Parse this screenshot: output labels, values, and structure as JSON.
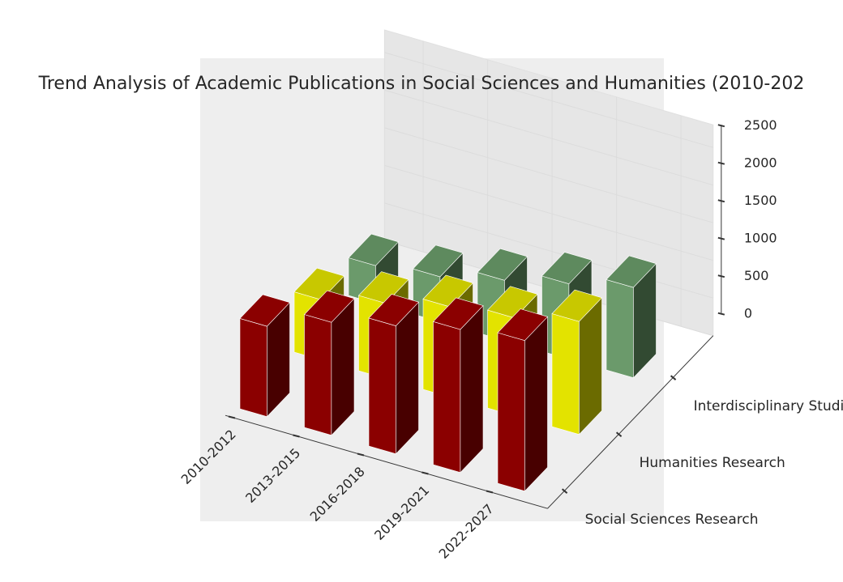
{
  "chart_data": {
    "type": "bar",
    "title": "Trend Analysis of Academic Publications in Social Sciences and Humanities (2010-202",
    "categories": [
      "2010-2012",
      "2013-2015",
      "2016-2018",
      "2019-2021",
      "2022-2027"
    ],
    "series": [
      {
        "name": "Social Sciences Research",
        "values": [
          1200,
          1500,
          1700,
          1900,
          2000
        ]
      },
      {
        "name": "Humanities Research",
        "values": [
          800,
          1000,
          1200,
          1300,
          1500
        ]
      },
      {
        "name": "Interdisciplinary Studies",
        "values": [
          500,
          600,
          800,
          1000,
          1200
        ]
      }
    ],
    "zlim": [
      0,
      2500
    ],
    "zticks": [
      0,
      500,
      1000,
      1500,
      2000,
      2500
    ],
    "grid": true,
    "projection": "3d",
    "colors": {
      "social": "#8b0000",
      "humanities": "#e6e600",
      "interdisciplinary": "#6b9a6b",
      "pane": "#eeeeee",
      "background": "#ffffff"
    }
  }
}
